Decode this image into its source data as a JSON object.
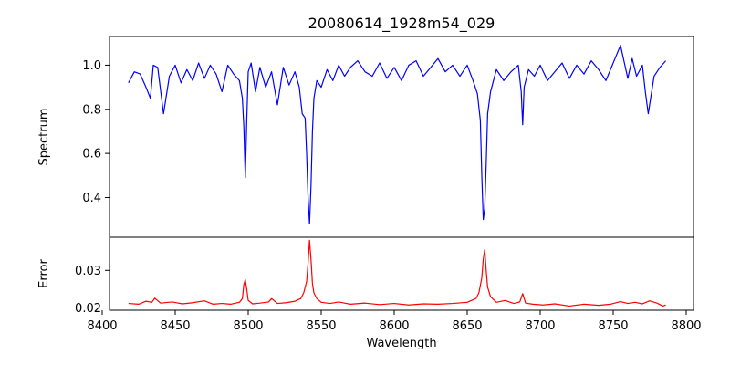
{
  "chart_data": {
    "type": "line",
    "title": "20080614_1928m54_029",
    "xlabel": "Wavelength",
    "x_range": [
      8405,
      8805
    ],
    "x_ticks": [
      8400,
      8450,
      8500,
      8550,
      8600,
      8650,
      8700,
      8750,
      8800
    ],
    "panels": [
      {
        "name": "spectrum",
        "ylabel": "Spectrum",
        "ylim": [
          0.22,
          1.13
        ],
        "y_ticks": [
          0.4,
          0.6,
          0.8,
          1.0
        ],
        "y_tick_labels": [
          "0.4",
          "0.6",
          "0.8",
          "1.0"
        ],
        "color": "#0000ff",
        "x": [
          8418,
          8422,
          8426,
          8430,
          8433,
          8435,
          8438,
          8442,
          8446,
          8450,
          8454,
          8458,
          8462,
          8466,
          8470,
          8474,
          8478,
          8482,
          8486,
          8490,
          8494,
          8496,
          8497,
          8498,
          8499,
          8500,
          8502,
          8505,
          8508,
          8512,
          8516,
          8520,
          8524,
          8528,
          8532,
          8535,
          8537,
          8539,
          8540,
          8541,
          8542,
          8543,
          8544,
          8545,
          8547,
          8550,
          8554,
          8558,
          8562,
          8566,
          8570,
          8575,
          8580,
          8585,
          8590,
          8595,
          8600,
          8605,
          8610,
          8615,
          8620,
          8625,
          8630,
          8635,
          8640,
          8645,
          8650,
          8654,
          8657,
          8659,
          8660,
          8661,
          8662,
          8663,
          8664,
          8666,
          8670,
          8675,
          8680,
          8685,
          8687,
          8688,
          8689,
          8692,
          8696,
          8700,
          8705,
          8710,
          8715,
          8720,
          8725,
          8730,
          8735,
          8740,
          8745,
          8750,
          8755,
          8758,
          8760,
          8763,
          8766,
          8770,
          8772,
          8774,
          8778,
          8782,
          8786
        ],
        "y": [
          0.92,
          0.97,
          0.96,
          0.9,
          0.85,
          1.0,
          0.99,
          0.78,
          0.95,
          1.0,
          0.92,
          0.98,
          0.93,
          1.01,
          0.94,
          1.0,
          0.96,
          0.88,
          1.0,
          0.96,
          0.93,
          0.85,
          0.72,
          0.49,
          0.75,
          0.97,
          1.01,
          0.88,
          0.99,
          0.9,
          0.97,
          0.82,
          0.99,
          0.91,
          0.97,
          0.9,
          0.78,
          0.76,
          0.6,
          0.4,
          0.28,
          0.45,
          0.7,
          0.85,
          0.93,
          0.9,
          0.98,
          0.93,
          1.0,
          0.95,
          0.99,
          1.02,
          0.97,
          0.95,
          1.01,
          0.94,
          0.99,
          0.93,
          1.0,
          1.02,
          0.95,
          0.99,
          1.03,
          0.97,
          1.0,
          0.95,
          1.0,
          0.93,
          0.87,
          0.75,
          0.5,
          0.3,
          0.35,
          0.55,
          0.78,
          0.88,
          0.98,
          0.93,
          0.97,
          1.0,
          0.88,
          0.73,
          0.9,
          0.98,
          0.95,
          1.0,
          0.93,
          0.97,
          1.01,
          0.94,
          1.0,
          0.96,
          1.02,
          0.98,
          0.93,
          1.01,
          1.09,
          1.0,
          0.94,
          1.03,
          0.95,
          1.0,
          0.88,
          0.78,
          0.95,
          0.99,
          1.02
        ]
      },
      {
        "name": "error",
        "ylabel": "Error",
        "ylim": [
          0.0194,
          0.0388
        ],
        "y_ticks": [
          0.02,
          0.03
        ],
        "y_tick_labels": [
          "0.02",
          "0.03"
        ],
        "color": "#ff0000",
        "x": [
          8418,
          8425,
          8430,
          8434,
          8436,
          8440,
          8448,
          8455,
          8462,
          8470,
          8476,
          8482,
          8488,
          8494,
          8496,
          8497,
          8498,
          8499,
          8500,
          8503,
          8508,
          8514,
          8516,
          8520,
          8526,
          8532,
          8536,
          8538,
          8540,
          8541,
          8542,
          8543,
          8544,
          8545,
          8547,
          8550,
          8556,
          8562,
          8570,
          8580,
          8590,
          8600,
          8610,
          8620,
          8630,
          8640,
          8650,
          8656,
          8658,
          8660,
          8661,
          8662,
          8663,
          8664,
          8666,
          8670,
          8676,
          8682,
          8686,
          8688,
          8690,
          8695,
          8702,
          8710,
          8720,
          8730,
          8740,
          8748,
          8755,
          8760,
          8765,
          8770,
          8775,
          8780,
          8784,
          8786
        ],
        "y": [
          0.0212,
          0.021,
          0.0218,
          0.0215,
          0.0226,
          0.0213,
          0.0216,
          0.0211,
          0.0214,
          0.0219,
          0.021,
          0.0212,
          0.021,
          0.0215,
          0.0225,
          0.0262,
          0.0275,
          0.025,
          0.022,
          0.0211,
          0.0213,
          0.0216,
          0.0225,
          0.0212,
          0.0214,
          0.0218,
          0.0225,
          0.024,
          0.027,
          0.032,
          0.038,
          0.033,
          0.0265,
          0.024,
          0.0225,
          0.0215,
          0.0212,
          0.0216,
          0.021,
          0.0213,
          0.0209,
          0.0212,
          0.0208,
          0.0211,
          0.021,
          0.0212,
          0.0215,
          0.0225,
          0.024,
          0.028,
          0.033,
          0.0355,
          0.03,
          0.0255,
          0.023,
          0.0215,
          0.022,
          0.0212,
          0.0216,
          0.0238,
          0.0213,
          0.021,
          0.0208,
          0.0211,
          0.0205,
          0.021,
          0.0207,
          0.021,
          0.0217,
          0.0212,
          0.0215,
          0.0211,
          0.0219,
          0.0213,
          0.0205,
          0.0208
        ]
      }
    ]
  }
}
